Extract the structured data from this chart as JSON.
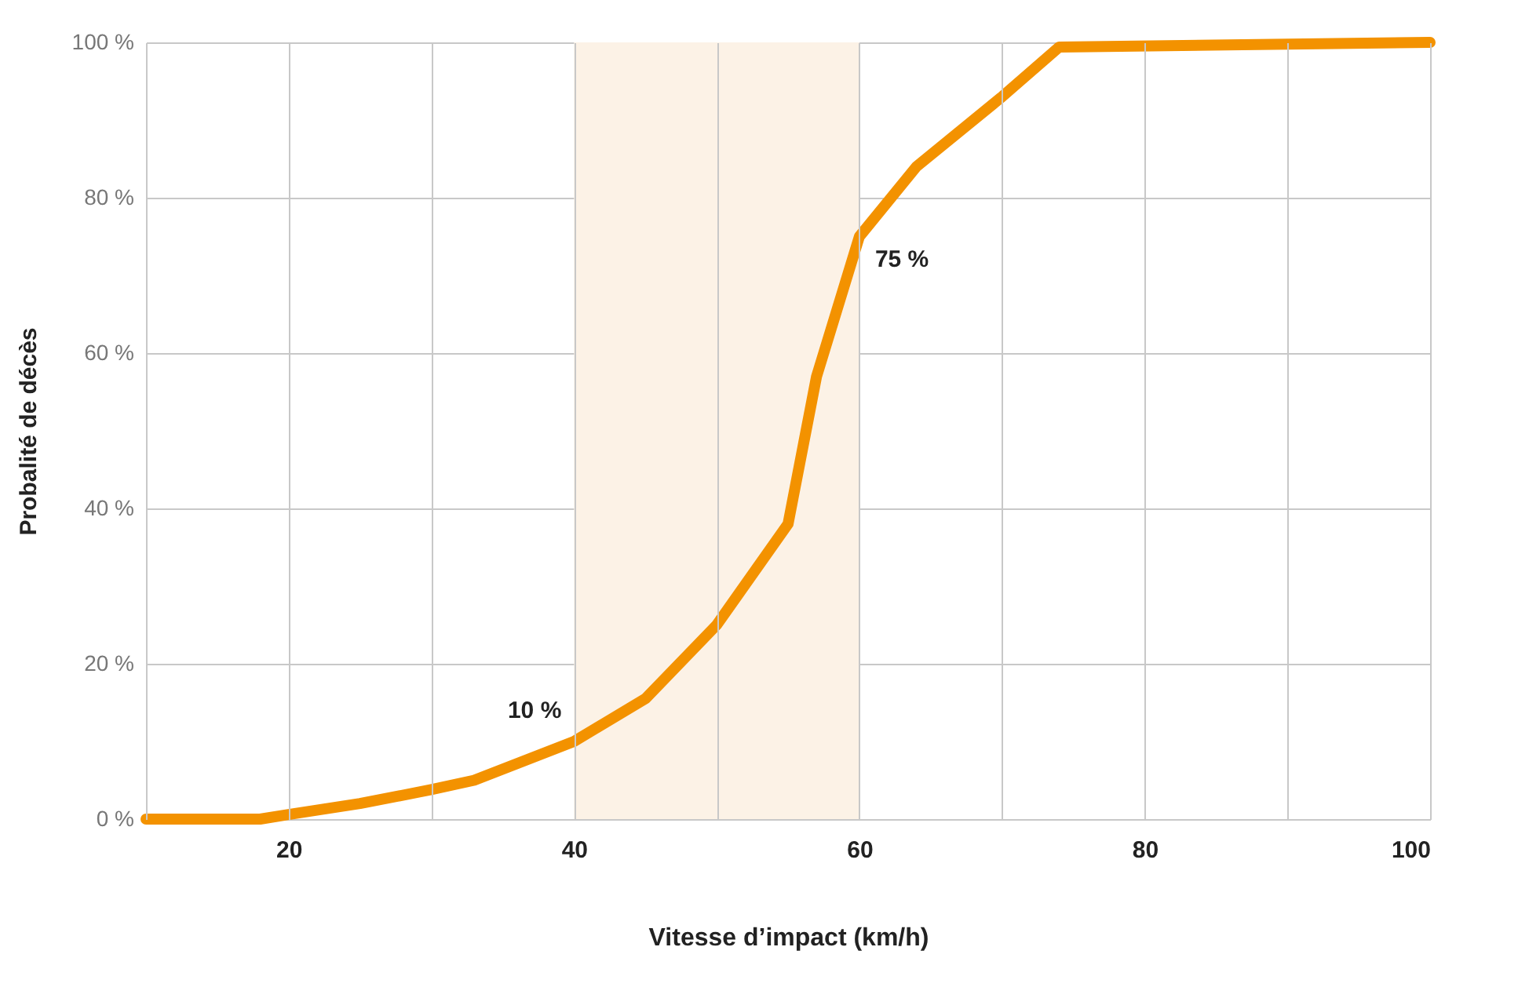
{
  "chart_data": {
    "type": "line",
    "xlabel": "Vitesse d’impact (km/h)",
    "ylabel": "Probalité de décès",
    "x": [
      10,
      18,
      20,
      25,
      30,
      33,
      40,
      45,
      50,
      55,
      57,
      60,
      64,
      70,
      74,
      100
    ],
    "series": [
      {
        "color": "#f39200",
        "values": [
          0,
          0,
          0.6,
          2,
          3.8,
          5,
          10,
          15.5,
          25,
          38,
          57,
          75,
          84,
          93,
          99.4,
          100
        ]
      }
    ],
    "xlim": [
      10,
      100
    ],
    "xticks": [
      {
        "value": 10,
        "label": null
      },
      20,
      {
        "value": 30,
        "label": null
      },
      40,
      {
        "value": 50,
        "label": null
      },
      60,
      {
        "value": 70,
        "label": null
      },
      80,
      {
        "value": 90,
        "label": null
      },
      100
    ],
    "ylim": [
      0,
      100
    ],
    "yticks": [
      {
        "value": 0,
        "label": "0 %"
      },
      {
        "value": 20,
        "label": "20 %"
      },
      {
        "value": 40,
        "label": "40 %"
      },
      {
        "value": 60,
        "label": "60 %"
      },
      {
        "value": 80,
        "label": "80 %"
      },
      {
        "value": 100,
        "label": "100 %"
      }
    ],
    "bands": [
      {
        "axis": "x",
        "from": 40,
        "to": 60,
        "label": null,
        "color": "#fcf2e6"
      }
    ],
    "annotations": [
      {
        "text": "10 %",
        "x": 40,
        "y": 10
      },
      {
        "text": "75 %",
        "x": 60,
        "y": 75
      }
    ],
    "grid": true,
    "line_style": "solid"
  }
}
